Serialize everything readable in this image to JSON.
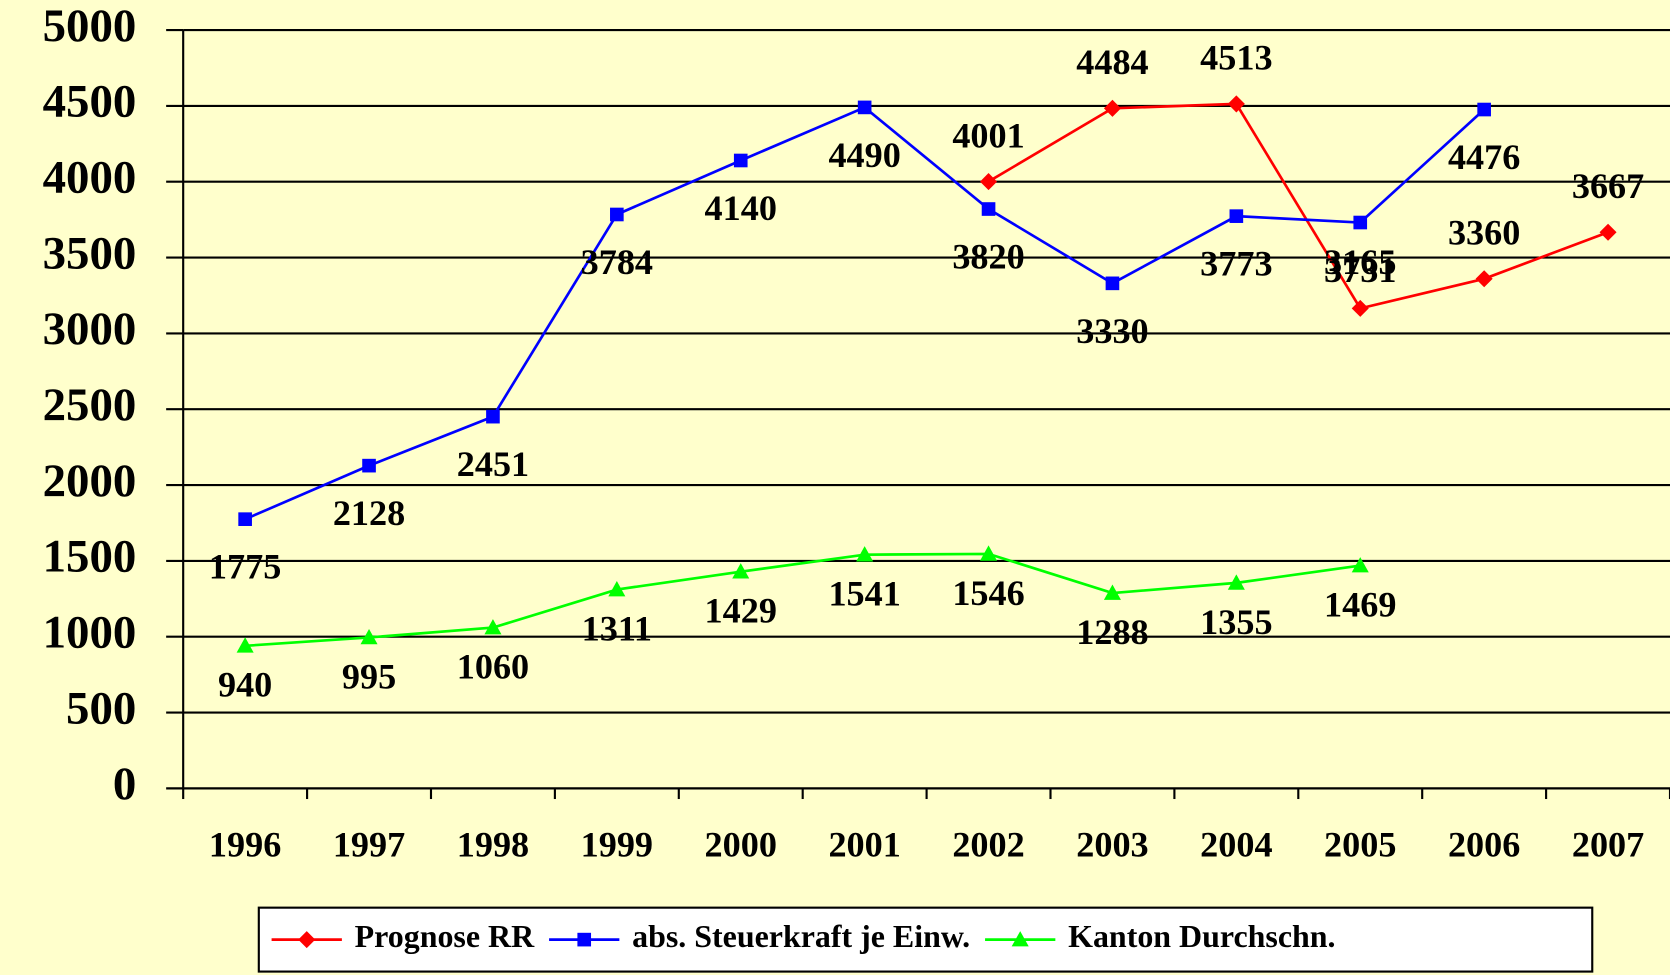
{
  "chart_data": {
    "type": "line",
    "categories": [
      "1996",
      "1997",
      "1998",
      "1999",
      "2000",
      "2001",
      "2002",
      "2003",
      "2004",
      "2005",
      "2006",
      "2007"
    ],
    "series": [
      {
        "name": "Prognose RR",
        "color": "#ff0000",
        "marker": "diamond",
        "values": [
          null,
          null,
          null,
          null,
          null,
          null,
          4001,
          4484,
          4513,
          3165,
          3360,
          3667
        ]
      },
      {
        "name": "abs. Steuerkraft je Einw.",
        "color": "#0000ff",
        "marker": "square",
        "values": [
          1775,
          2128,
          2451,
          3784,
          4140,
          4490,
          3820,
          3330,
          3773,
          3731,
          4476,
          null
        ]
      },
      {
        "name": "Kanton Durchschn.",
        "color": "#00ff00",
        "marker": "triangle",
        "values": [
          940,
          995,
          1060,
          1311,
          1429,
          1541,
          1546,
          1288,
          1355,
          1469,
          null,
          null
        ]
      }
    ],
    "ylim": [
      0,
      5000
    ],
    "yticks": [
      0,
      500,
      1000,
      1500,
      2000,
      2500,
      3000,
      3500,
      4000,
      4500,
      5000
    ],
    "grid": true,
    "legend": "bottom"
  }
}
